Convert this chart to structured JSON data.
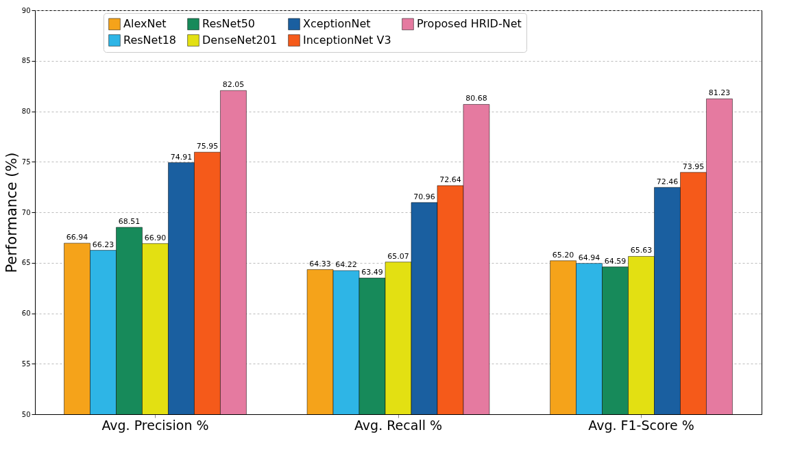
{
  "chart_data": {
    "type": "bar",
    "ylabel": "Performance (%)",
    "categories": [
      "Avg. Precision %",
      "Avg. Recall %",
      "Avg. F1-Score %"
    ],
    "series": [
      {
        "name": "AlexNet",
        "color": "#f5a31a",
        "values": [
          66.94,
          64.33,
          65.2
        ],
        "value_labels": [
          "66.94",
          "64.33",
          "65.20"
        ]
      },
      {
        "name": "ResNet18",
        "color": "#2eb5e6",
        "values": [
          66.23,
          64.22,
          64.94
        ],
        "value_labels": [
          "66.23",
          "64.22",
          "64.94"
        ]
      },
      {
        "name": "ResNet50",
        "color": "#178a5a",
        "values": [
          68.51,
          63.49,
          64.59
        ],
        "value_labels": [
          "68.51",
          "63.49",
          "64.59"
        ]
      },
      {
        "name": "DenseNet201",
        "color": "#e3e012",
        "values": [
          66.9,
          65.07,
          65.63
        ],
        "value_labels": [
          "66.90",
          "65.07",
          "65.63"
        ]
      },
      {
        "name": "XceptionNet",
        "color": "#1a5fa0",
        "values": [
          74.91,
          70.96,
          72.46
        ],
        "value_labels": [
          "74.91",
          "70.96",
          "72.46"
        ]
      },
      {
        "name": "InceptionNet V3",
        "color": "#f55a1a",
        "values": [
          75.95,
          72.64,
          73.95
        ],
        "value_labels": [
          "75.95",
          "72.64",
          "73.95"
        ]
      },
      {
        "name": "Proposed HRID-Net",
        "color": "#e57aa0",
        "values": [
          82.05,
          80.68,
          81.23
        ],
        "value_labels": [
          "82.05",
          "80.68",
          "81.23"
        ]
      }
    ],
    "ylim": [
      50,
      90
    ],
    "yticks": [
      50,
      55,
      60,
      65,
      70,
      75,
      80,
      85,
      90
    ],
    "grid": "y",
    "legend": "top"
  }
}
